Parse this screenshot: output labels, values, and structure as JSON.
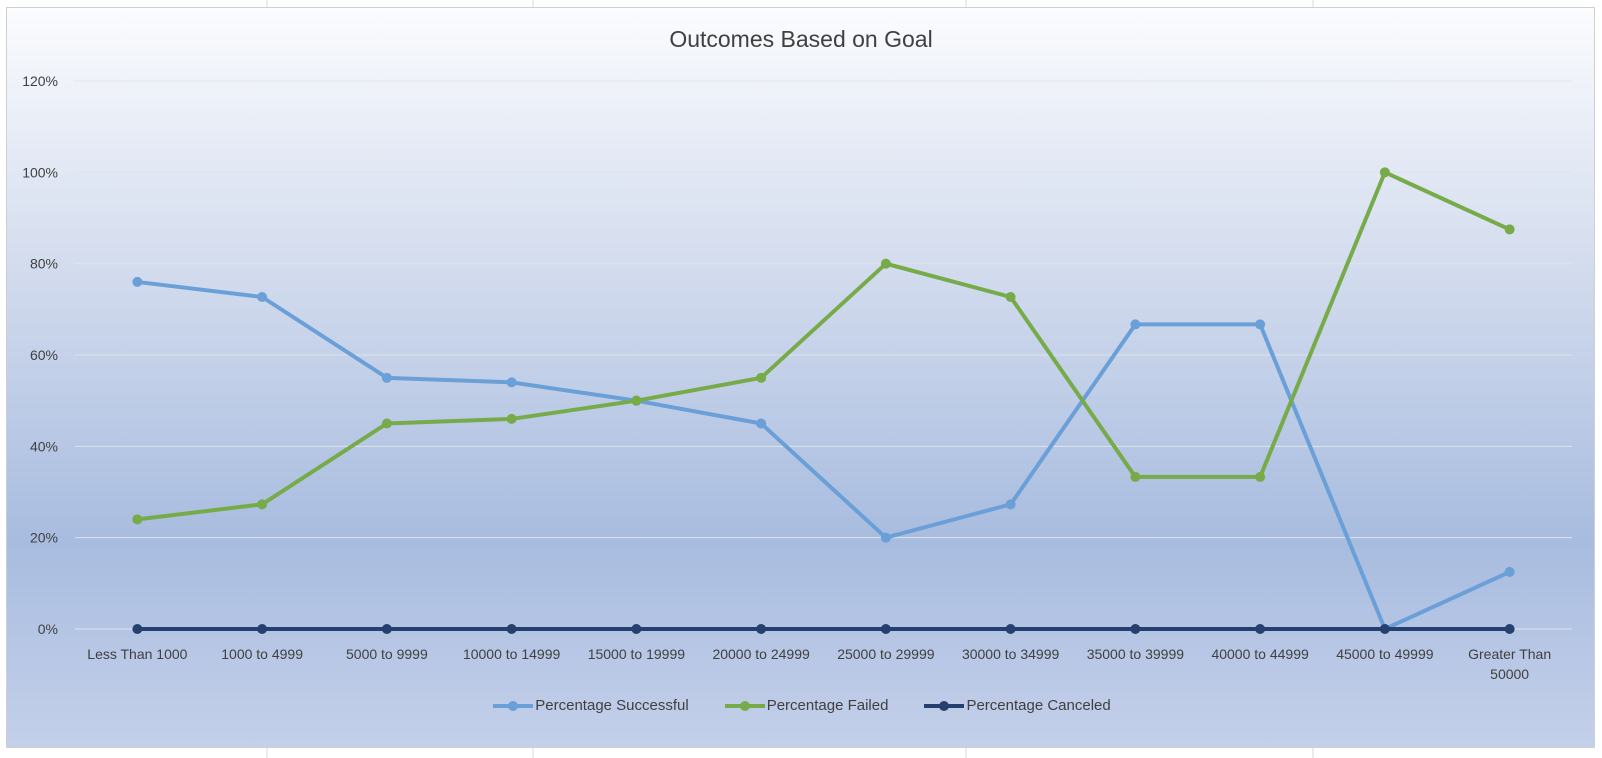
{
  "window": {
    "title": "Outcomes Based on Goal"
  },
  "colors": {
    "successful": "#6a9fd8",
    "failed": "#77ab4a",
    "canceled": "#25406f",
    "gridline": "#dfe3ea",
    "axis_text": "#404040"
  },
  "chart_data": {
    "type": "line",
    "title": "Outcomes Based on Goal",
    "xlabel": "",
    "ylabel": "",
    "ylim": [
      0,
      1.2
    ],
    "yticks": [
      "0%",
      "20%",
      "40%",
      "60%",
      "80%",
      "100%",
      "120%"
    ],
    "grid": true,
    "legend_position": "bottom",
    "categories": [
      "Less Than 1000",
      "1000 to 4999",
      "5000 to 9999",
      "10000 to 14999",
      "15000 to 19999",
      "20000 to 24999",
      "25000 to 29999",
      "30000 to 34999",
      "35000 to 39999",
      "40000 to 44999",
      "45000 to 49999",
      "Greater Than 50000"
    ],
    "category_lines": [
      [
        "Less Than 1000"
      ],
      [
        "1000 to 4999"
      ],
      [
        "5000 to 9999"
      ],
      [
        "10000 to 14999"
      ],
      [
        "15000 to 19999"
      ],
      [
        "20000 to 24999"
      ],
      [
        "25000 to 29999"
      ],
      [
        "30000 to 34999"
      ],
      [
        "35000 to 39999"
      ],
      [
        "40000 to 44999"
      ],
      [
        "45000 to 49999"
      ],
      [
        "Greater Than",
        "50000"
      ]
    ],
    "series": [
      {
        "name": "Percentage Successful",
        "color_key": "successful",
        "values": [
          0.76,
          0.727,
          0.55,
          0.54,
          0.5,
          0.45,
          0.2,
          0.273,
          0.667,
          0.667,
          0.0,
          0.125
        ]
      },
      {
        "name": "Percentage Failed",
        "color_key": "failed",
        "values": [
          0.24,
          0.273,
          0.45,
          0.46,
          0.5,
          0.55,
          0.8,
          0.727,
          0.333,
          0.333,
          1.0,
          0.875
        ]
      },
      {
        "name": "Percentage Canceled",
        "color_key": "canceled",
        "values": [
          0,
          0,
          0,
          0,
          0,
          0,
          0,
          0,
          0,
          0,
          0,
          0
        ]
      }
    ]
  }
}
